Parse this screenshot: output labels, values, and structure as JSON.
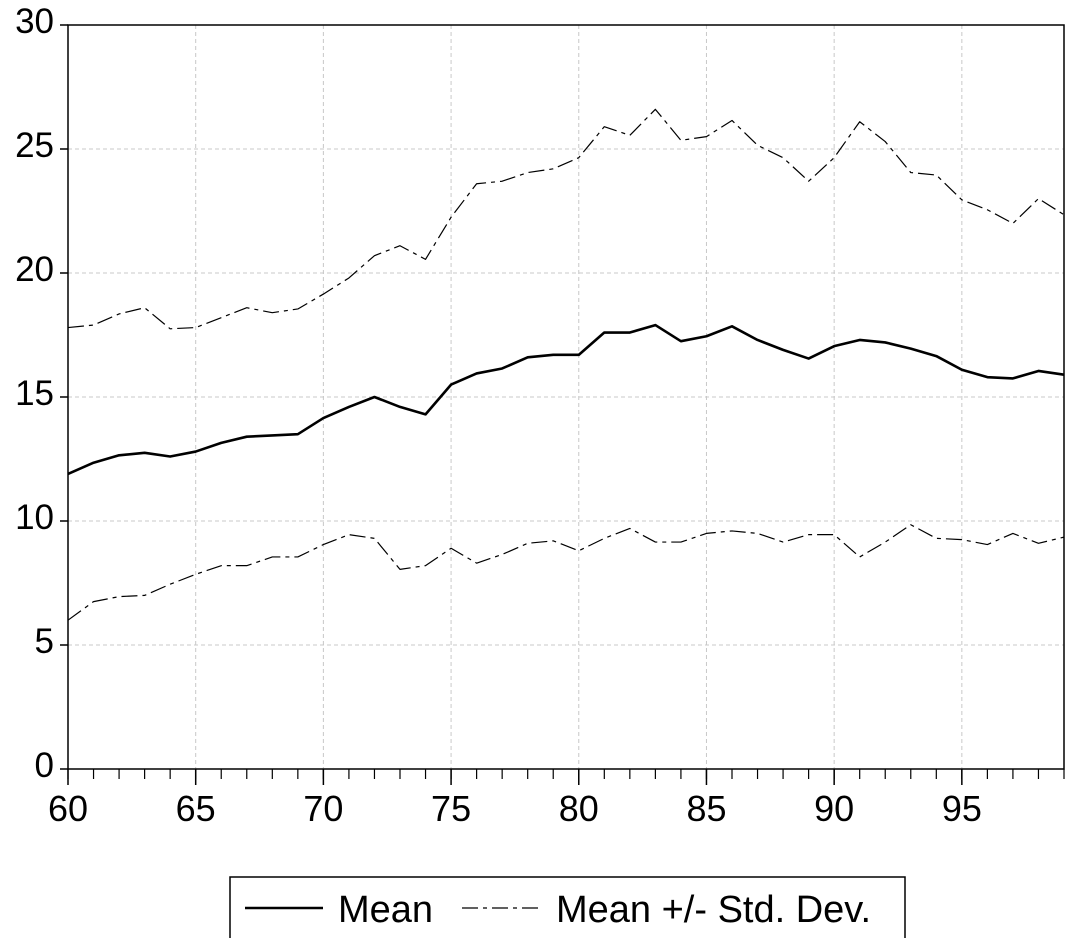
{
  "chart_data": {
    "type": "line",
    "x": [
      60,
      61,
      62,
      63,
      64,
      65,
      66,
      67,
      68,
      69,
      70,
      71,
      72,
      73,
      74,
      75,
      76,
      77,
      78,
      79,
      80,
      81,
      82,
      83,
      84,
      85,
      86,
      87,
      88,
      89,
      90,
      91,
      92,
      93,
      94,
      95,
      96,
      97,
      98,
      99
    ],
    "xlim": [
      60,
      99
    ],
    "xticks": [
      60,
      65,
      70,
      75,
      80,
      85,
      90,
      95
    ],
    "ylim": [
      0,
      30
    ],
    "yticks": [
      0,
      5,
      10,
      15,
      20,
      25,
      30
    ],
    "grid": true,
    "legend": "bottom",
    "series": [
      {
        "name": "Mean",
        "color": "#000000",
        "values": [
          11.9,
          12.35,
          12.65,
          12.75,
          12.6,
          12.8,
          13.15,
          13.4,
          13.45,
          13.5,
          14.15,
          14.6,
          15.0,
          14.6,
          14.3,
          15.5,
          15.95,
          16.15,
          16.6,
          16.7,
          16.7,
          17.6,
          17.6,
          17.9,
          17.25,
          17.45,
          17.85,
          17.3,
          16.9,
          16.55,
          17.05,
          17.3,
          17.2,
          16.95,
          16.65,
          16.1,
          15.8,
          15.75,
          16.05,
          15.9
        ]
      },
      {
        "name": "Mean +/- Std. Dev.",
        "color": "#000000",
        "values": [
          17.8,
          17.9,
          18.35,
          18.6,
          17.75,
          17.8,
          18.2,
          18.6,
          18.4,
          18.55,
          19.15,
          19.8,
          20.7,
          21.1,
          20.55,
          22.25,
          23.6,
          23.7,
          24.05,
          24.2,
          24.65,
          25.9,
          25.55,
          26.6,
          25.35,
          25.5,
          26.15,
          25.15,
          24.65,
          23.7,
          24.65,
          26.1,
          25.3,
          24.05,
          23.95,
          22.95,
          22.55,
          22.0,
          23.0,
          22.35
        ],
        "lower": [
          6.0,
          6.75,
          6.95,
          7.0,
          7.45,
          7.85,
          8.2,
          8.2,
          8.55,
          8.55,
          9.05,
          9.45,
          9.3,
          8.05,
          8.2,
          8.9,
          8.3,
          8.65,
          9.1,
          9.2,
          8.8,
          9.3,
          9.7,
          9.15,
          9.15,
          9.5,
          9.6,
          9.5,
          9.15,
          9.45,
          9.45,
          8.55,
          9.15,
          9.85,
          9.3,
          9.25,
          9.05,
          9.5,
          9.1,
          9.35
        ]
      }
    ]
  }
}
